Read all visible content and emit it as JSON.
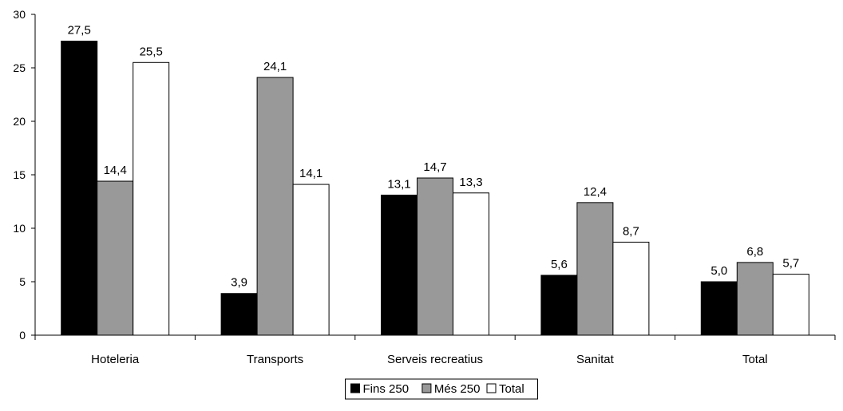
{
  "chart_data": {
    "type": "bar",
    "categories": [
      "Hoteleria",
      "Transports",
      "Serveis recreatius",
      "Sanitat",
      "Total"
    ],
    "series": [
      {
        "name": "Fins 250",
        "values": [
          27.5,
          3.9,
          13.1,
          5.6,
          5.0
        ],
        "labels": [
          "27,5",
          "3,9",
          "13,1",
          "5,6",
          "5,0"
        ],
        "color": "#000000"
      },
      {
        "name": "Més 250",
        "values": [
          14.4,
          24.1,
          14.7,
          12.4,
          6.8
        ],
        "labels": [
          "14,4",
          "24,1",
          "14,7",
          "12,4",
          "6,8"
        ],
        "color": "#999999"
      },
      {
        "name": "Total",
        "values": [
          25.5,
          14.1,
          13.3,
          8.7,
          5.7
        ],
        "labels": [
          "25,5",
          "14,1",
          "13,3",
          "8,7",
          "5,7"
        ],
        "color": "#ffffff"
      }
    ],
    "ylim": [
      0,
      30
    ],
    "yticks": [
      0,
      5,
      10,
      15,
      20,
      25,
      30
    ],
    "grid": false,
    "legend": "bottom-center",
    "title": "",
    "xlabel": "",
    "ylabel": ""
  }
}
